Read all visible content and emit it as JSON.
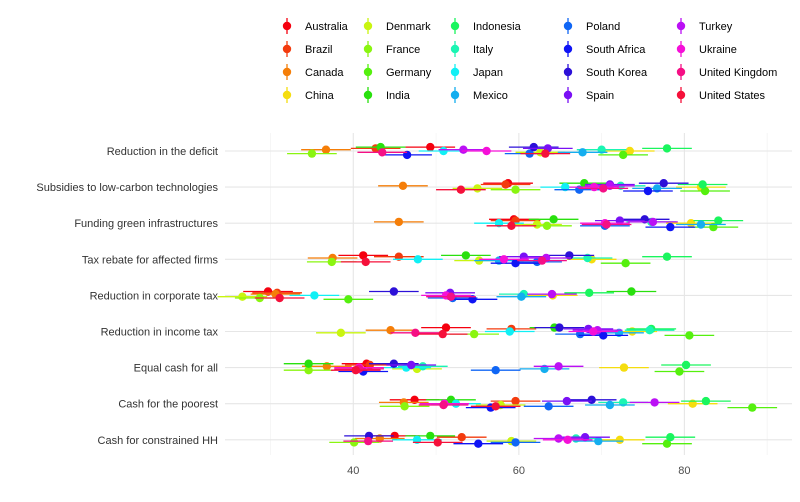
{
  "chart_data": {
    "type": "scatter",
    "title": "",
    "xlabel": "",
    "ylabel": "",
    "xlim": [
      24.5,
      93
    ],
    "xticks": [
      40,
      60,
      80
    ],
    "grid": true,
    "legend_position": "top",
    "categories": [
      "Reduction in the deficit",
      "Subsidies to low-carbon technologies",
      "Funding green infrastructures",
      "Tax rebate for affected firms",
      "Reduction in corporate tax",
      "Reduction in income tax",
      "Equal cash for all",
      "Cash for the poorest",
      "Cash for constrained HH"
    ],
    "error_half_width": 3,
    "series": [
      {
        "name": "Australia",
        "color": "#F5000F",
        "values": [
          49.3,
          58.7,
          59.4,
          41.2,
          29.7,
          51.2,
          41.6,
          47.4,
          45.0
        ]
      },
      {
        "name": "Brazil",
        "color": "#F33B0E",
        "values": [
          42.7,
          58.4,
          59.6,
          45.5,
          30.8,
          59.1,
          42.0,
          59.6,
          53.1
        ]
      },
      {
        "name": "Canada",
        "color": "#F57E08",
        "values": [
          36.7,
          46.0,
          45.5,
          37.5,
          30.6,
          44.5,
          36.8,
          46.1,
          43.2
        ]
      },
      {
        "name": "China",
        "color": "#F5DD0F",
        "values": [
          73.4,
          82.0,
          80.8,
          68.8,
          64.1,
          73.7,
          72.7,
          81.0,
          72.2
        ]
      },
      {
        "name": "Denmark",
        "color": "#C9F510",
        "values": [
          62.6,
          55.0,
          62.2,
          55.2,
          26.6,
          38.5,
          47.7,
          57.8,
          59.1
        ]
      },
      {
        "name": "France",
        "color": "#8AF510",
        "values": [
          35.0,
          59.6,
          63.4,
          37.4,
          28.7,
          54.6,
          34.6,
          46.2,
          40.1
        ]
      },
      {
        "name": "Germany",
        "color": "#55F00E",
        "values": [
          72.6,
          82.5,
          83.5,
          72.9,
          39.4,
          80.6,
          79.4,
          88.2,
          77.9
        ]
      },
      {
        "name": "India",
        "color": "#29E00E",
        "values": [
          43.3,
          67.9,
          64.2,
          53.6,
          73.6,
          64.3,
          34.6,
          51.8,
          49.3
        ]
      },
      {
        "name": "Indonesia",
        "color": "#1AF55E",
        "values": [
          77.9,
          82.2,
          84.1,
          77.9,
          68.5,
          76.0,
          80.2,
          82.6,
          78.3
        ]
      },
      {
        "name": "Italy",
        "color": "#1AF5B3",
        "values": [
          70.0,
          72.3,
          76.0,
          68.3,
          60.6,
          75.8,
          48.4,
          72.6,
          66.9
        ]
      },
      {
        "name": "Japan",
        "color": "#10F0F5",
        "values": [
          50.9,
          65.6,
          57.6,
          47.8,
          35.3,
          58.9,
          46.4,
          52.4,
          47.7
        ]
      },
      {
        "name": "Mexico",
        "color": "#14AEEF",
        "values": [
          67.7,
          76.7,
          82.0,
          57.6,
          60.3,
          72.1,
          63.1,
          71.0,
          69.6
        ]
      },
      {
        "name": "Poland",
        "color": "#1066F5",
        "values": [
          61.3,
          67.3,
          70.4,
          62.2,
          52.0,
          67.4,
          57.2,
          63.6,
          59.6
        ]
      },
      {
        "name": "South Africa",
        "color": "#0F14F5",
        "values": [
          46.5,
          75.6,
          78.3,
          59.6,
          54.4,
          70.2,
          41.2,
          56.6,
          55.1
        ]
      },
      {
        "name": "South Korea",
        "color": "#2C10D8",
        "values": [
          61.8,
          77.5,
          75.2,
          66.1,
          44.9,
          64.9,
          44.9,
          68.8,
          41.9
        ]
      },
      {
        "name": "Spain",
        "color": "#7A10F5",
        "values": [
          63.5,
          71.0,
          72.2,
          60.6,
          51.7,
          68.4,
          47.0,
          65.8,
          68.0
        ]
      },
      {
        "name": "Turkey",
        "color": "#BB10F5",
        "values": [
          53.3,
          71.0,
          76.2,
          63.3,
          64.0,
          69.5,
          64.8,
          76.4,
          64.8
        ]
      },
      {
        "name": "Ukraine",
        "color": "#F510D8",
        "values": [
          56.1,
          69.1,
          70.4,
          58.2,
          51.2,
          69.0,
          40.7,
          51.0,
          65.9
        ]
      },
      {
        "name": "United Kingdom",
        "color": "#F50F85",
        "values": [
          43.5,
          70.2,
          70.6,
          62.8,
          51.8,
          47.5,
          40.7,
          50.9,
          41.8
        ]
      },
      {
        "name": "United States",
        "color": "#F5103A",
        "values": [
          63.2,
          53.0,
          59.1,
          41.5,
          31.1,
          50.8,
          40.3,
          57.2,
          50.2
        ]
      }
    ]
  }
}
